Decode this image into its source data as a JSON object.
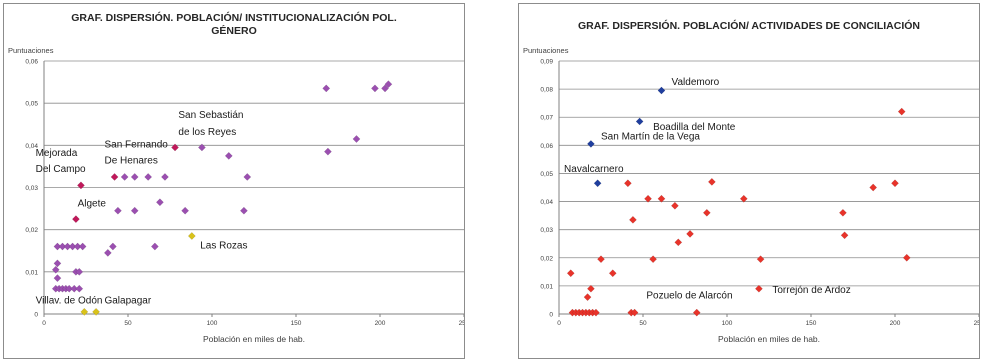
{
  "chart_data": [
    {
      "type": "scatter",
      "title_lines": [
        "GRAF. DISPERSIÓN. POBLACIÓN/ INSTITUCIONALIZACIÓN POL.",
        "GÉNERO"
      ],
      "ylabel": "Puntuaciones",
      "xlabel": "Población en miles de hab.",
      "xlim": [
        0,
        250
      ],
      "ylim": [
        0,
        0.06
      ],
      "xticks": [
        0,
        50,
        100,
        150,
        200,
        250
      ],
      "yticks": [
        0,
        0.01,
        0.02,
        0.03,
        0.04,
        0.05,
        0.06
      ],
      "ytick_labels": [
        "0",
        "0,01",
        "0,02",
        "0,03",
        "0,04",
        "0,05",
        "0,06"
      ],
      "grid": true,
      "series": [
        {
          "color": "#9b4fb0",
          "points": [
            [
              8,
              0.012
            ],
            [
              7,
              0.0105
            ],
            [
              8,
              0.0085
            ],
            [
              7,
              0.006
            ],
            [
              9,
              0.006
            ],
            [
              11,
              0.006
            ],
            [
              13,
              0.006
            ],
            [
              15,
              0.006
            ],
            [
              18,
              0.006
            ],
            [
              21,
              0.006
            ],
            [
              8,
              0.016
            ],
            [
              11,
              0.016
            ],
            [
              14,
              0.016
            ],
            [
              17,
              0.016
            ],
            [
              20,
              0.016
            ],
            [
              23,
              0.016
            ],
            [
              19,
              0.01
            ],
            [
              21,
              0.01
            ],
            [
              38,
              0.0145
            ],
            [
              41,
              0.016
            ],
            [
              44,
              0.0245
            ],
            [
              54,
              0.0245
            ],
            [
              66,
              0.016
            ],
            [
              69,
              0.0265
            ],
            [
              72,
              0.0325
            ],
            [
              48,
              0.0325
            ],
            [
              54,
              0.0325
            ],
            [
              62,
              0.0325
            ],
            [
              84,
              0.0245
            ],
            [
              94,
              0.0395
            ],
            [
              110,
              0.0375
            ],
            [
              119,
              0.0245
            ],
            [
              121,
              0.0325
            ],
            [
              169,
              0.0385
            ],
            [
              168,
              0.0535
            ],
            [
              186,
              0.0415
            ],
            [
              197,
              0.0535
            ],
            [
              203,
              0.0535
            ],
            [
              205,
              0.0545
            ]
          ]
        },
        {
          "color": "#c0185a",
          "points": [
            [
              22,
              0.0305
            ],
            [
              42,
              0.0325
            ],
            [
              78,
              0.0395
            ],
            [
              19,
              0.0225
            ]
          ]
        },
        {
          "color": "#d9c21a",
          "points": [
            [
              88,
              0.0185
            ],
            [
              24,
              0.0005
            ],
            [
              31,
              0.0005
            ]
          ]
        }
      ],
      "annotations": [
        {
          "text": "San Sebastián",
          "x": 80,
          "y": 0.0465
        },
        {
          "text": "de los Reyes",
          "x": 80,
          "y": 0.0425
        },
        {
          "text": "San Fernando",
          "x": 36,
          "y": 0.0395
        },
        {
          "text": "De Henares",
          "x": 36,
          "y": 0.0357
        },
        {
          "text": "Mejorada",
          "x": -5,
          "y": 0.0375
        },
        {
          "text": "Del Campo",
          "x": -5,
          "y": 0.0337
        },
        {
          "text": "Algete",
          "x": 20,
          "y": 0.0255
        },
        {
          "text": "Las Rozas",
          "x": 93,
          "y": 0.0155
        },
        {
          "text": "Villav. de Odón",
          "x": -5,
          "y": 0.0025
        },
        {
          "text": "Galapagar",
          "x": 36,
          "y": 0.0025
        }
      ]
    },
    {
      "type": "scatter",
      "title_lines": [
        "GRAF. DISPERSIÓN. POBLACIÓN/ ACTIVIDADES DE CONCILIACIÓN"
      ],
      "ylabel": "Puntuaciones",
      "xlabel": "Población en miles de hab.",
      "xlim": [
        0,
        250
      ],
      "ylim": [
        0,
        0.09
      ],
      "xticks": [
        0,
        50,
        100,
        150,
        200,
        250
      ],
      "yticks": [
        0,
        0.01,
        0.02,
        0.03,
        0.04,
        0.05,
        0.06,
        0.07,
        0.08,
        0.09
      ],
      "ytick_labels": [
        "0",
        "0,01",
        "0,02",
        "0,03",
        "0,04",
        "0,05",
        "0,06",
        "0,07",
        "0,08",
        "0,09"
      ],
      "grid": true,
      "series": [
        {
          "color": "#e8332a",
          "points": [
            [
              7,
              0.0145
            ],
            [
              8,
              0.0005
            ],
            [
              10,
              0.0005
            ],
            [
              12,
              0.0005
            ],
            [
              14,
              0.0005
            ],
            [
              16,
              0.0005
            ],
            [
              18,
              0.0005
            ],
            [
              20,
              0.0005
            ],
            [
              22,
              0.0005
            ],
            [
              17,
              0.006
            ],
            [
              19,
              0.009
            ],
            [
              25,
              0.0195
            ],
            [
              32,
              0.0145
            ],
            [
              41,
              0.0465
            ],
            [
              43,
              0.0005
            ],
            [
              44,
              0.0335
            ],
            [
              45,
              0.0005
            ],
            [
              53,
              0.041
            ],
            [
              56,
              0.0195
            ],
            [
              61,
              0.041
            ],
            [
              69,
              0.0385
            ],
            [
              71,
              0.0255
            ],
            [
              78,
              0.0285
            ],
            [
              82,
              0.0005
            ],
            [
              88,
              0.036
            ],
            [
              91,
              0.047
            ],
            [
              110,
              0.041
            ],
            [
              120,
              0.0195
            ],
            [
              119,
              0.009
            ],
            [
              169,
              0.036
            ],
            [
              170,
              0.028
            ],
            [
              187,
              0.045
            ],
            [
              200,
              0.0465
            ],
            [
              204,
              0.072
            ],
            [
              207,
              0.02
            ]
          ]
        },
        {
          "color": "#1f3e9e",
          "points": [
            [
              61,
              0.0795
            ],
            [
              48,
              0.0685
            ],
            [
              19,
              0.0605
            ],
            [
              23,
              0.0465
            ]
          ]
        }
      ],
      "annotations": [
        {
          "text": "Valdemoro",
          "x": 67,
          "y": 0.0815
        },
        {
          "text": "Boadilla del Monte",
          "x": 56,
          "y": 0.0655
        },
        {
          "text": "San Martín de la Vega",
          "x": 25,
          "y": 0.062
        },
        {
          "text": "Navalcarnero",
          "x": 3,
          "y": 0.0505
        },
        {
          "text": "Pozuelo de Alarcón",
          "x": 52,
          "y": 0.0055
        },
        {
          "text": "Torrejón de Ardoz",
          "x": 127,
          "y": 0.0075
        }
      ]
    }
  ]
}
